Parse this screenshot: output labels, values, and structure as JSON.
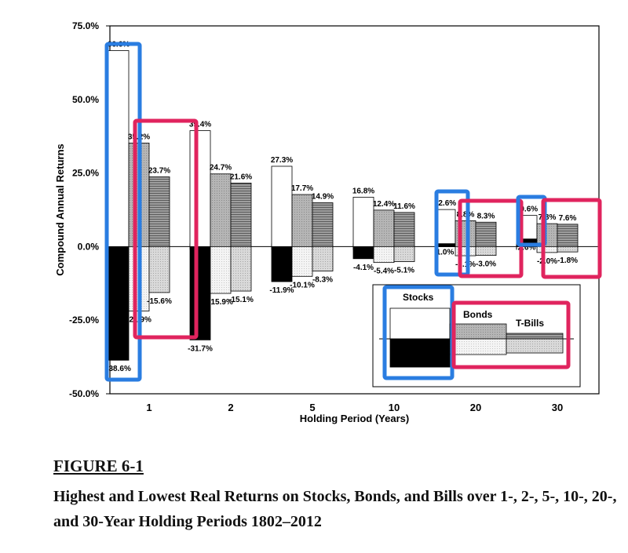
{
  "figure": {
    "number": "FIGURE 6-1",
    "caption": "Highest and Lowest Real Returns on Stocks, Bonds, and Bills over 1-, 2-, 5-, 10-, 20-, and 30-Year Holding Periods 1802–2012"
  },
  "chart_data": {
    "type": "bar",
    "title": "",
    "xlabel": "Holding Period (Years)",
    "ylabel": "Compound Annual Returns",
    "categories": [
      "1",
      "2",
      "5",
      "10",
      "20",
      "30"
    ],
    "ylim": [
      -50,
      75
    ],
    "yticks": [
      "75.0%",
      "50.0%",
      "25.0%",
      "0.0%",
      "-25.0%",
      "-50.0%"
    ],
    "series": [
      {
        "name": "Stocks",
        "high": [
          66.6,
          39.4,
          27.3,
          16.8,
          12.6,
          10.6
        ],
        "low": [
          -38.6,
          -31.7,
          -11.9,
          -4.1,
          1.0,
          2.6
        ]
      },
      {
        "name": "Bonds",
        "high": [
          35.2,
          24.7,
          17.7,
          12.4,
          8.8,
          7.8
        ],
        "low": [
          -21.9,
          -15.9,
          -10.1,
          -5.4,
          -3.1,
          -2.0
        ]
      },
      {
        "name": "T-Bills",
        "high": [
          23.7,
          21.6,
          14.9,
          11.6,
          8.3,
          7.6
        ],
        "low": [
          -15.6,
          -15.1,
          -8.3,
          -5.1,
          -3.0,
          -1.8
        ]
      }
    ],
    "high_labels": [
      [
        "66.6%",
        "35.2%",
        "23.7%"
      ],
      [
        "39.4%",
        "24.7%",
        "21.6%"
      ],
      [
        "27.3%",
        "17.7%",
        "14.9%"
      ],
      [
        "16.8%",
        "12.4%",
        "11.6%"
      ],
      [
        "12.6%",
        "8.8%",
        "8.3%"
      ],
      [
        "10.6%",
        "7.8%",
        "7.6%"
      ]
    ],
    "low_labels": [
      [
        "-38.6%",
        "-21.9%",
        "-15.6%"
      ],
      [
        "-31.7%",
        "-15.9%",
        "-15.1%"
      ],
      [
        "-11.9%",
        "-10.1%",
        "-8.3%"
      ],
      [
        "-4.1%",
        "-5.4%",
        "-5.1%"
      ],
      [
        "1.0%",
        "-3.1%",
        "-3.0%"
      ],
      [
        "2.6%",
        "-2.0%",
        "-1.8%"
      ]
    ],
    "legend": {
      "placement": "bottom-right",
      "items": [
        "Stocks",
        "Bonds",
        "T-Bills"
      ]
    },
    "highlight_colors": {
      "stocks": "#2a7de1",
      "bonds_bills": "#e0245e"
    },
    "grid": false
  }
}
